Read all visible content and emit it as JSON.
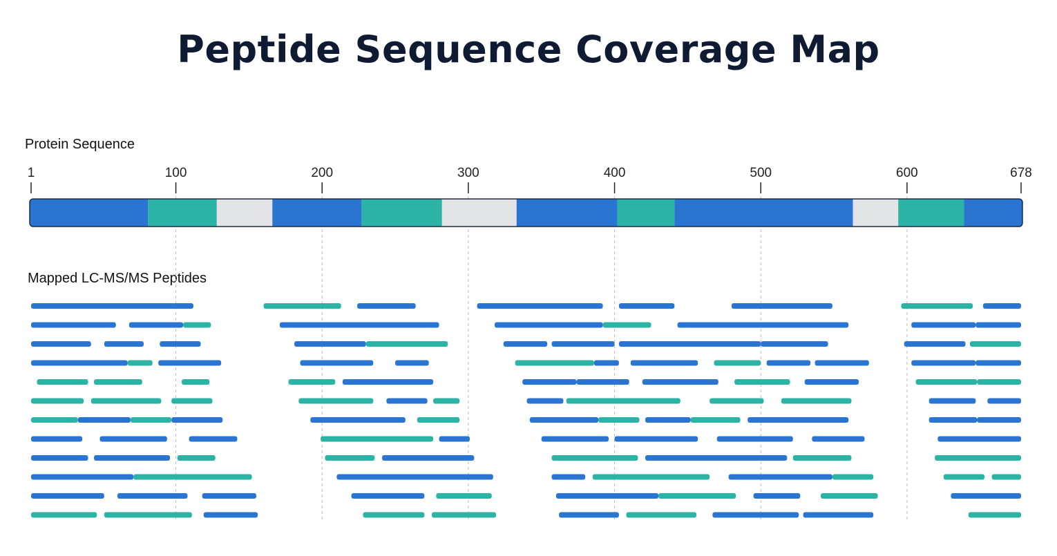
{
  "title": "Peptide Sequence Coverage Map",
  "sections": {
    "protein_label": "Protein Sequence",
    "peptides_label": "Mapped LC-MS/MS Peptides"
  },
  "colors": {
    "blue": "#2a74d2",
    "teal": "#2bb3a6",
    "gap": "#e3e4e6",
    "title": "#0f1b33",
    "tick": "#222222",
    "gridline": "#bbbbbb"
  },
  "chart_data": {
    "type": "coverage-map",
    "title": "Peptide Sequence Coverage Map",
    "xlim": [
      1,
      678
    ],
    "ticks": [
      1,
      100,
      200,
      300,
      400,
      500,
      600,
      678
    ],
    "gridlines": [
      100,
      200,
      300,
      400,
      500,
      600
    ],
    "protein_segments": [
      {
        "start": 1,
        "end": 81,
        "color": "blue"
      },
      {
        "start": 81,
        "end": 128,
        "color": "teal"
      },
      {
        "start": 128,
        "end": 166,
        "color": "gap"
      },
      {
        "start": 166,
        "end": 227,
        "color": "blue"
      },
      {
        "start": 227,
        "end": 282,
        "color": "teal"
      },
      {
        "start": 282,
        "end": 333,
        "color": "gap"
      },
      {
        "start": 333,
        "end": 402,
        "color": "blue"
      },
      {
        "start": 402,
        "end": 441,
        "color": "teal"
      },
      {
        "start": 441,
        "end": 563,
        "color": "blue"
      },
      {
        "start": 563,
        "end": 594,
        "color": "gap"
      },
      {
        "start": 594,
        "end": 639,
        "color": "teal"
      },
      {
        "start": 639,
        "end": 678,
        "color": "blue"
      }
    ],
    "peptide_rows": [
      [
        [
          1,
          112,
          "blue"
        ],
        [
          160,
          213,
          "teal"
        ],
        [
          224,
          264,
          "blue"
        ],
        [
          306,
          392,
          "blue"
        ],
        [
          403,
          441,
          "blue"
        ],
        [
          480,
          549,
          "blue"
        ],
        [
          596,
          645,
          "teal"
        ],
        [
          652,
          678,
          "blue"
        ]
      ],
      [
        [
          1,
          59,
          "blue"
        ],
        [
          68,
          105,
          "blue"
        ],
        [
          105,
          124,
          "teal"
        ],
        [
          171,
          280,
          "blue"
        ],
        [
          318,
          392,
          "blue"
        ],
        [
          392,
          425,
          "teal"
        ],
        [
          443,
          560,
          "blue"
        ],
        [
          603,
          647,
          "blue"
        ],
        [
          647,
          678,
          "blue"
        ]
      ],
      [
        [
          1,
          42,
          "blue"
        ],
        [
          51,
          78,
          "blue"
        ],
        [
          89,
          117,
          "blue"
        ],
        [
          181,
          230,
          "blue"
        ],
        [
          230,
          286,
          "teal"
        ],
        [
          324,
          354,
          "blue"
        ],
        [
          357,
          400,
          "blue"
        ],
        [
          403,
          500,
          "blue"
        ],
        [
          500,
          546,
          "blue"
        ],
        [
          598,
          640,
          "blue"
        ],
        [
          643,
          678,
          "teal"
        ]
      ],
      [
        [
          1,
          67,
          "blue"
        ],
        [
          67,
          84,
          "teal"
        ],
        [
          88,
          131,
          "blue"
        ],
        [
          185,
          235,
          "blue"
        ],
        [
          250,
          273,
          "blue"
        ],
        [
          332,
          386,
          "teal"
        ],
        [
          386,
          403,
          "blue"
        ],
        [
          411,
          457,
          "blue"
        ],
        [
          468,
          500,
          "teal"
        ],
        [
          504,
          534,
          "blue"
        ],
        [
          537,
          574,
          "blue"
        ],
        [
          603,
          647,
          "blue"
        ],
        [
          647,
          678,
          "blue"
        ]
      ],
      [
        [
          5,
          40,
          "teal"
        ],
        [
          44,
          77,
          "teal"
        ],
        [
          104,
          123,
          "teal"
        ],
        [
          177,
          209,
          "teal"
        ],
        [
          214,
          276,
          "blue"
        ],
        [
          337,
          374,
          "blue"
        ],
        [
          374,
          410,
          "blue"
        ],
        [
          419,
          471,
          "blue"
        ],
        [
          482,
          520,
          "teal"
        ],
        [
          530,
          567,
          "blue"
        ],
        [
          606,
          648,
          "teal"
        ],
        [
          648,
          678,
          "teal"
        ]
      ],
      [
        [
          1,
          37,
          "teal"
        ],
        [
          42,
          90,
          "teal"
        ],
        [
          97,
          125,
          "teal"
        ],
        [
          184,
          235,
          "teal"
        ],
        [
          244,
          272,
          "blue"
        ],
        [
          276,
          294,
          "teal"
        ],
        [
          340,
          365,
          "blue"
        ],
        [
          367,
          445,
          "teal"
        ],
        [
          465,
          502,
          "teal"
        ],
        [
          514,
          562,
          "teal"
        ],
        [
          615,
          647,
          "blue"
        ],
        [
          655,
          678,
          "blue"
        ]
      ],
      [
        [
          1,
          33,
          "teal"
        ],
        [
          33,
          69,
          "blue"
        ],
        [
          69,
          97,
          "teal"
        ],
        [
          97,
          132,
          "blue"
        ],
        [
          192,
          257,
          "blue"
        ],
        [
          265,
          294,
          "teal"
        ],
        [
          342,
          389,
          "blue"
        ],
        [
          389,
          417,
          "teal"
        ],
        [
          421,
          452,
          "blue"
        ],
        [
          452,
          486,
          "teal"
        ],
        [
          491,
          560,
          "blue"
        ],
        [
          615,
          648,
          "blue"
        ],
        [
          648,
          678,
          "blue"
        ]
      ],
      [
        [
          1,
          36,
          "blue"
        ],
        [
          48,
          94,
          "blue"
        ],
        [
          109,
          142,
          "blue"
        ],
        [
          199,
          276,
          "teal"
        ],
        [
          280,
          301,
          "blue"
        ],
        [
          350,
          396,
          "blue"
        ],
        [
          400,
          457,
          "blue"
        ],
        [
          470,
          522,
          "blue"
        ],
        [
          535,
          571,
          "blue"
        ],
        [
          621,
          678,
          "blue"
        ]
      ],
      [
        [
          1,
          40,
          "blue"
        ],
        [
          44,
          96,
          "blue"
        ],
        [
          101,
          127,
          "teal"
        ],
        [
          202,
          236,
          "teal"
        ],
        [
          241,
          304,
          "blue"
        ],
        [
          357,
          416,
          "teal"
        ],
        [
          421,
          518,
          "blue"
        ],
        [
          522,
          562,
          "teal"
        ],
        [
          619,
          678,
          "teal"
        ]
      ],
      [
        [
          1,
          71,
          "blue"
        ],
        [
          71,
          152,
          "teal"
        ],
        [
          210,
          317,
          "blue"
        ],
        [
          357,
          380,
          "blue"
        ],
        [
          385,
          465,
          "teal"
        ],
        [
          478,
          549,
          "blue"
        ],
        [
          549,
          577,
          "teal"
        ],
        [
          625,
          653,
          "teal"
        ],
        [
          658,
          678,
          "teal"
        ]
      ],
      [
        [
          1,
          51,
          "blue"
        ],
        [
          60,
          108,
          "blue"
        ],
        [
          118,
          155,
          "blue"
        ],
        [
          220,
          270,
          "blue"
        ],
        [
          278,
          316,
          "teal"
        ],
        [
          360,
          430,
          "blue"
        ],
        [
          430,
          483,
          "teal"
        ],
        [
          495,
          527,
          "blue"
        ],
        [
          541,
          580,
          "teal"
        ],
        [
          630,
          678,
          "blue"
        ]
      ],
      [
        [
          1,
          46,
          "teal"
        ],
        [
          51,
          111,
          "teal"
        ],
        [
          119,
          156,
          "blue"
        ],
        [
          228,
          270,
          "teal"
        ],
        [
          275,
          319,
          "teal"
        ],
        [
          362,
          403,
          "blue"
        ],
        [
          408,
          456,
          "teal"
        ],
        [
          467,
          526,
          "blue"
        ],
        [
          529,
          577,
          "blue"
        ],
        [
          642,
          678,
          "teal"
        ]
      ]
    ]
  }
}
